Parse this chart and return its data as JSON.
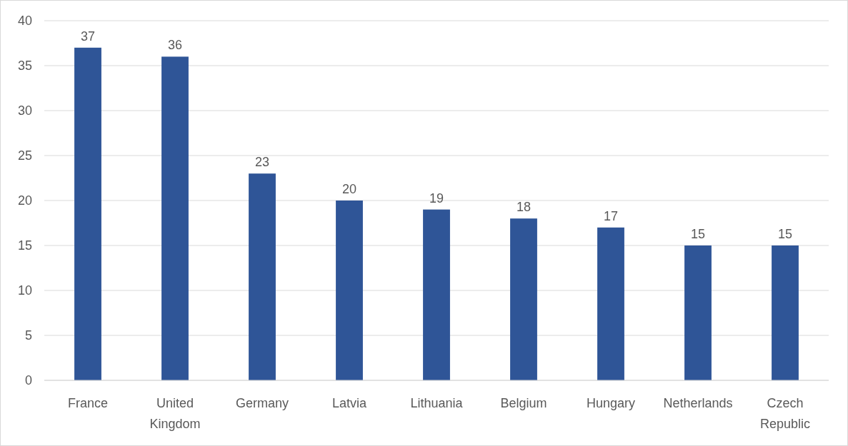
{
  "chart_data": {
    "type": "bar",
    "categories": [
      "France",
      "United Kingdom",
      "Germany",
      "Latvia",
      "Lithuania",
      "Belgium",
      "Hungary",
      "Netherlands",
      "Czech Republic"
    ],
    "values": [
      37,
      36,
      23,
      20,
      19,
      18,
      17,
      15,
      15
    ],
    "color": "#2f5597",
    "ylim": [
      0,
      40
    ],
    "yticks": [
      0,
      5,
      10,
      15,
      20,
      25,
      30,
      35,
      40
    ],
    "grid": "y",
    "data_labels": true
  }
}
